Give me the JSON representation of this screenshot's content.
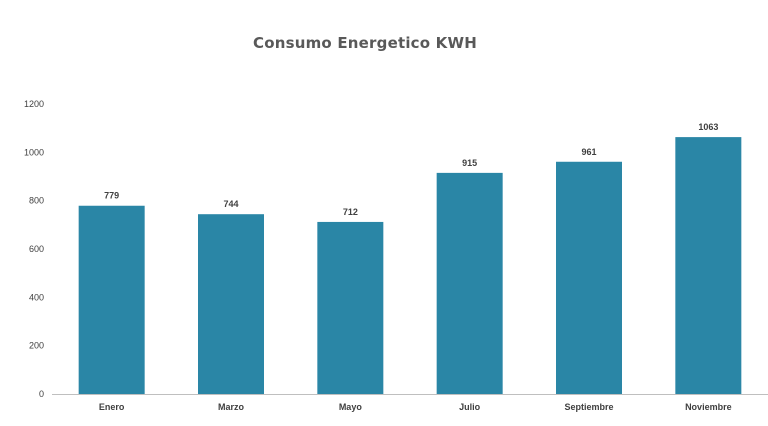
{
  "chart_data": {
    "type": "bar",
    "title": "Consumo Energetico KWH",
    "xlabel": "",
    "ylabel": "",
    "categories": [
      "Enero",
      "Marzo",
      "Mayo",
      "Julio",
      "Septiembre",
      "Noviembre"
    ],
    "values": [
      779,
      744,
      712,
      915,
      961,
      1063
    ],
    "ylim": [
      0,
      1200
    ],
    "yticks": [
      0,
      200,
      400,
      600,
      800,
      1000,
      1200
    ],
    "grid": false,
    "legend": "none",
    "bar_color": "#2a86a6",
    "data_labels": true
  }
}
